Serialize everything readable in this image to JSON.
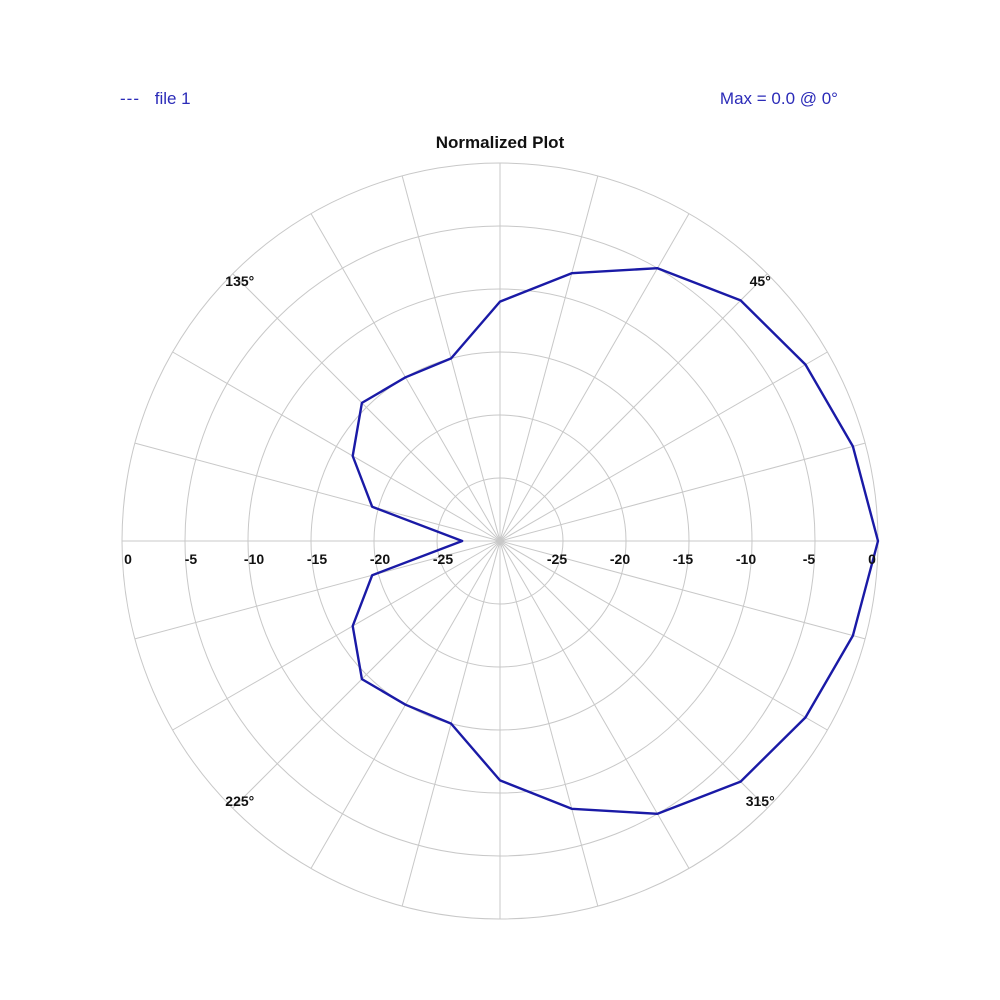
{
  "legend": {
    "marker": "---",
    "label": "file 1"
  },
  "max_readout": "Max = 0.0 @ 0°",
  "colors": {
    "series": "#1a1aa6",
    "grid": "#c8c8c8",
    "text": "#111111",
    "legend": "#2b2bb8"
  },
  "chart_data": {
    "type": "line",
    "subtype": "polar",
    "title": "Normalized Plot",
    "r_range": [
      -30,
      0
    ],
    "r_ticks": [
      0,
      -5,
      -10,
      -15,
      -20,
      -25
    ],
    "radial_tick_labels": {
      "left": [
        "0",
        "-5",
        "-10",
        "-15",
        "-20",
        "-25"
      ],
      "right": [
        "-25",
        "-20",
        "-15",
        "-10",
        "-5",
        "0"
      ]
    },
    "angle_labels": [
      "45°",
      "135°",
      "225°",
      "315°"
    ],
    "angle_step_deg": 15,
    "grid": true,
    "series": [
      {
        "name": "file 1",
        "angles_deg": [
          0,
          15,
          30,
          45,
          60,
          75,
          90,
          105,
          120,
          135,
          150,
          165,
          180,
          195,
          210,
          225,
          240,
          255,
          270,
          285,
          300,
          315,
          330,
          345
        ],
        "values": [
          0.0,
          -1.0,
          -2.0,
          -3.0,
          -5.0,
          -8.0,
          -11.0,
          -15.0,
          -15.0,
          -14.5,
          -16.5,
          -19.5,
          -27.0,
          -19.5,
          -16.5,
          -14.5,
          -15.0,
          -15.0,
          -11.0,
          -8.0,
          -5.0,
          -3.0,
          -2.0,
          -1.0
        ]
      }
    ]
  }
}
